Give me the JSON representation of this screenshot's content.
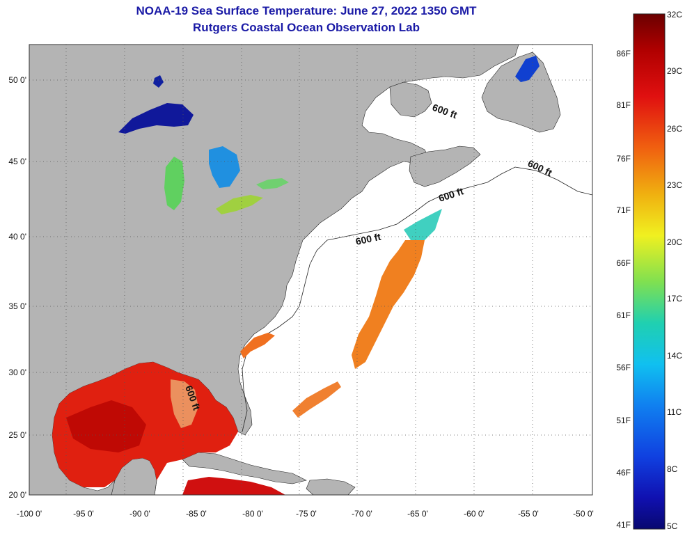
{
  "header": {
    "title": "NOAA-19 Sea Surface Temperature:  June 27, 2022 1350 GMT",
    "subtitle": "Rutgers Coastal Ocean Observation Lab"
  },
  "map": {
    "lat_ticks": [
      "50 0'",
      "45 0'",
      "40 0'",
      "35 0'",
      "30 0'",
      "25 0'",
      "20 0'"
    ],
    "lon_ticks": [
      "-100 0'",
      "-95 0'",
      "-90 0'",
      "-85 0'",
      "-80 0'",
      "-75 0'",
      "-70 0'",
      "-65 0'",
      "-60 0'",
      "-55 0'",
      "-50 0'"
    ],
    "isobath_labels": [
      "600 ft",
      "600 ft",
      "600 ft",
      "600 ft",
      "600 ft"
    ],
    "colors": {
      "land": "#b4b4b4",
      "ocean": "#ffffff",
      "grid": "#555555"
    }
  },
  "colorbar": {
    "celsius": [
      "32C",
      "29C",
      "26C",
      "23C",
      "20C",
      "17C",
      "14C",
      "11C",
      "8C",
      "5C"
    ],
    "fahrenheit": [
      "86F",
      "81F",
      "76F",
      "71F",
      "66F",
      "61F",
      "56F",
      "51F",
      "46F",
      "41F"
    ],
    "gradient": [
      "#6b0000",
      "#b00000",
      "#e01010",
      "#f04010",
      "#f08010",
      "#f0c010",
      "#f0f020",
      "#b0e830",
      "#60e060",
      "#20d0a0",
      "#10d0e0",
      "#10a0f0",
      "#1060f0",
      "#1030d0",
      "#1010a0",
      "#080870"
    ]
  }
}
